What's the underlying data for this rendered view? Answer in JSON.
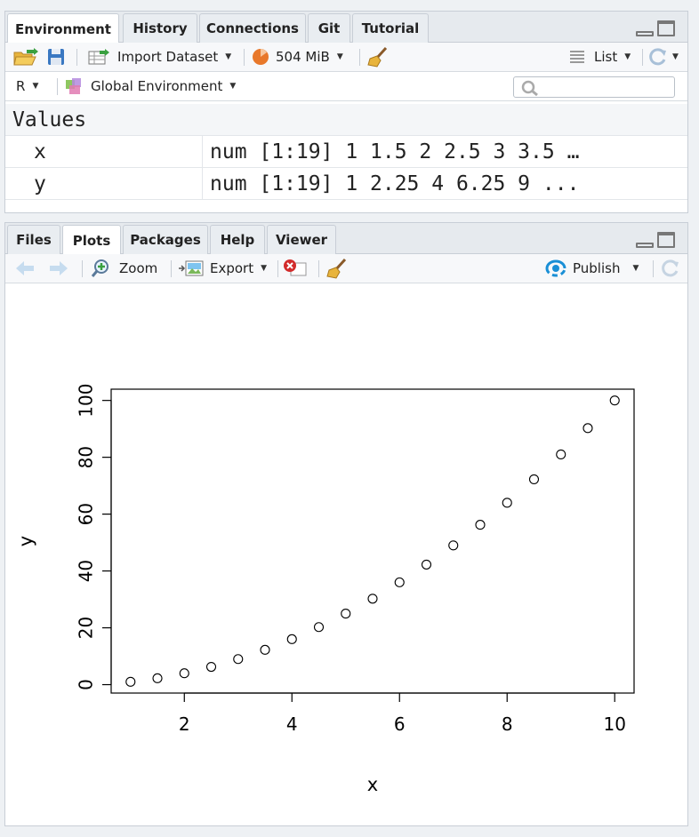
{
  "env_pane": {
    "tabs": [
      {
        "label": "Environment",
        "active": true
      },
      {
        "label": "History",
        "active": false
      },
      {
        "label": "Connections",
        "active": false
      },
      {
        "label": "Git",
        "active": false
      },
      {
        "label": "Tutorial",
        "active": false
      }
    ],
    "toolbar": {
      "import_label": "Import Dataset",
      "memory_label": "504 MiB",
      "view_label": "List"
    },
    "toolbar2": {
      "language": "R",
      "scope": "Global Environment",
      "search_placeholder": ""
    },
    "values_header": "Values",
    "variables": [
      {
        "name": "x",
        "value": "num [1:19] 1 1.5 2 2.5 3 3.5 …"
      },
      {
        "name": "y",
        "value": "num [1:19] 1 2.25 4 6.25 9 ..."
      }
    ]
  },
  "plot_pane": {
    "tabs": [
      {
        "label": "Files",
        "active": false
      },
      {
        "label": "Plots",
        "active": true
      },
      {
        "label": "Packages",
        "active": false
      },
      {
        "label": "Help",
        "active": false
      },
      {
        "label": "Viewer",
        "active": false
      }
    ],
    "toolbar": {
      "zoom_label": "Zoom",
      "export_label": "Export",
      "publish_label": "Publish"
    }
  },
  "colors": {
    "accent_orange": "#e8782a",
    "publish_blue": "#1a8fd6",
    "delete_red": "#d22b2b"
  },
  "chart_data": {
    "type": "scatter",
    "xlabel": "x",
    "ylabel": "y",
    "title": "",
    "x": [
      1,
      1.5,
      2,
      2.5,
      3,
      3.5,
      4,
      4.5,
      5,
      5.5,
      6,
      6.5,
      7,
      7.5,
      8,
      8.5,
      9,
      9.5,
      10
    ],
    "y": [
      1,
      2.25,
      4,
      6.25,
      9,
      12.25,
      16,
      20.25,
      25,
      30.25,
      36,
      42.25,
      49,
      56.25,
      64,
      72.25,
      81,
      90.25,
      100
    ],
    "xticks": [
      2,
      4,
      6,
      8,
      10
    ],
    "yticks": [
      0,
      20,
      40,
      60,
      80,
      100
    ],
    "xlim": [
      0.64,
      10.36
    ],
    "ylim": [
      -2.96,
      103.96
    ],
    "marker": "open-circle",
    "grid": false
  }
}
